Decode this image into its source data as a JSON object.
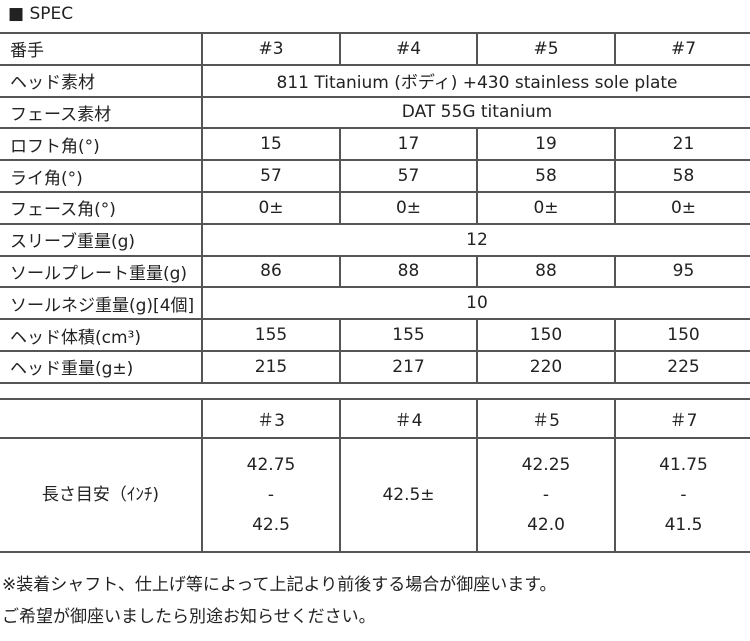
{
  "title": "■ SPEC",
  "spec": {
    "header": [
      "番手",
      "#3",
      "#4",
      "#5",
      "#7"
    ],
    "head_material": {
      "label": "ヘッド素材",
      "value": "811 Titanium (ボディ) +430 stainless sole plate"
    },
    "face_material": {
      "label": "フェース素材",
      "value": "DAT 55G titanium"
    },
    "rows": [
      {
        "label": "ロフト角(°)",
        "values": [
          "15",
          "17",
          "19",
          "21"
        ]
      },
      {
        "label": "ライ角(°)",
        "values": [
          "57",
          "57",
          "58",
          "58"
        ]
      },
      {
        "label": "フェース角(°)",
        "values": [
          "0±",
          "0±",
          "0±",
          "0±"
        ]
      }
    ],
    "sleeve": {
      "label": "スリーブ重量(g)",
      "value": "12"
    },
    "sole_plate": {
      "label": "ソールプレート重量(g)",
      "values": [
        "86",
        "88",
        "88",
        "95"
      ]
    },
    "sole_screw": {
      "label": "ソールネジ重量(g)[4個]",
      "value": "10"
    },
    "rows2": [
      {
        "label": "ヘッド体積(cm³)",
        "values": [
          "155",
          "155",
          "150",
          "150"
        ]
      },
      {
        "label": "ヘッド重量(g±)",
        "values": [
          "215",
          "217",
          "220",
          "225"
        ]
      }
    ]
  },
  "length": {
    "header": [
      "",
      "＃3",
      "＃4",
      "＃5",
      "＃7"
    ],
    "label": "長さ目安（ｲﾝﾁ)",
    "values": [
      {
        "top": "42.75",
        "sep": "-",
        "bottom": "42.5"
      },
      {
        "single": "42.5±"
      },
      {
        "top": "42.25",
        "sep": "-",
        "bottom": "42.0"
      },
      {
        "top": "41.75",
        "sep": "-",
        "bottom": "41.5"
      }
    ]
  },
  "notes": [
    "※装着シャフト、仕上げ等によって上記より前後する場合が御座います。",
    "ご希望が御座いましたら別途お知らせください。"
  ]
}
